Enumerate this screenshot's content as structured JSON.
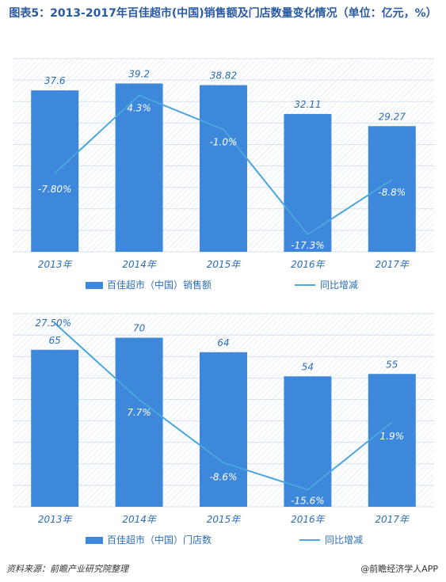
{
  "title": "图表5：2013-2017年百佳超市(中国)销售额及门店数量变化情况（单位：亿元，%）",
  "chart_data": [
    {
      "type": "bar",
      "categories": [
        "2013年",
        "2014年",
        "2015年",
        "2016年",
        "2017年"
      ],
      "series": [
        {
          "name": "百佳超市（中国）销售额",
          "type": "bar",
          "values": [
            37.6,
            39.2,
            38.82,
            32.11,
            29.27
          ],
          "labels": [
            "37.6",
            "39.2",
            "38.82",
            "32.11",
            "29.27"
          ],
          "color": "#3e88dc"
        },
        {
          "name": "同比增减",
          "type": "line",
          "values": [
            -7.8,
            4.3,
            -1.0,
            -17.3,
            -8.8
          ],
          "labels": [
            "-7.80%",
            "4.3%",
            "-1.0%",
            "-17.3%",
            "-8.8%"
          ],
          "color": "#4aa6dd"
        }
      ],
      "bar_ylim": [
        0,
        45
      ],
      "line_ylim": [
        -20,
        10
      ],
      "grid": true,
      "legend_position": "bottom"
    },
    {
      "type": "bar",
      "categories": [
        "2013年",
        "2014年",
        "2015年",
        "2016年",
        "2017年"
      ],
      "series": [
        {
          "name": "百佳超市（中国）门店数",
          "type": "bar",
          "values": [
            65,
            70,
            64,
            54,
            55
          ],
          "labels": [
            "65",
            "70",
            "64",
            "54",
            "55"
          ],
          "color": "#3e88dc"
        },
        {
          "name": "同比增减",
          "type": "line",
          "values": [
            27.5,
            7.7,
            -8.6,
            -15.6,
            1.9
          ],
          "labels": [
            "27.50%",
            "7.7%",
            "-8.6%",
            "-15.6%",
            "1.9%"
          ],
          "color": "#4aa6dd"
        }
      ],
      "bar_ylim": [
        0,
        80
      ],
      "line_ylim": [
        -20,
        30
      ],
      "grid": true,
      "legend_position": "bottom"
    }
  ],
  "footer": {
    "source": "资料来源：前瞻产业研究院整理",
    "brand": "@前瞻经济学人APP"
  }
}
